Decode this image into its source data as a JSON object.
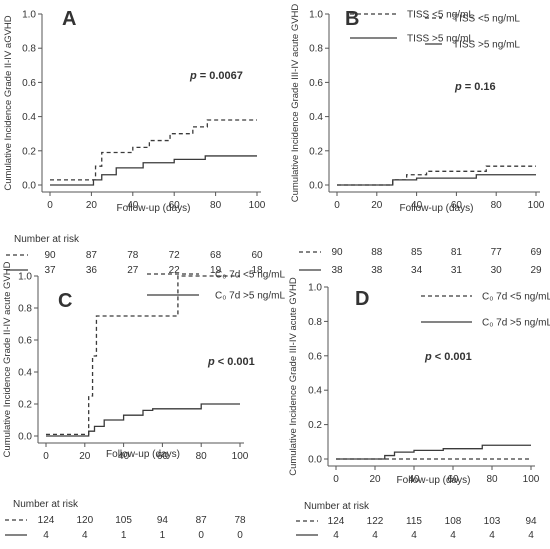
{
  "chart_data": [
    {
      "type": "line",
      "panel_label": "A",
      "ylabel": "Cumulative Incidence Grade II-IV aGVHD",
      "xlabel": "Follow-up (days)",
      "xlim": [
        0,
        100
      ],
      "ylim": [
        0,
        1.0
      ],
      "xticks": [
        "0",
        "20",
        "40",
        "60",
        "80",
        "100"
      ],
      "yticks": [
        "0.0",
        "0.2",
        "0.4",
        "0.6",
        "0.8",
        "1.0"
      ],
      "p_value": "= 0.0067",
      "legend_position": "top-right",
      "series": [
        {
          "name": "TISS <5 ng/mL",
          "style": "dashed",
          "x": [
            0,
            19,
            22,
            25,
            30,
            40,
            48,
            58,
            69,
            76,
            100
          ],
          "y": [
            0.03,
            0.03,
            0.11,
            0.19,
            0.19,
            0.22,
            0.26,
            0.3,
            0.34,
            0.38,
            0.38
          ]
        },
        {
          "name": "TISS >5 ng/mL",
          "style": "solid",
          "x": [
            0,
            19,
            21,
            25,
            32,
            45,
            60,
            75,
            100
          ],
          "y": [
            0.0,
            0.0,
            0.03,
            0.06,
            0.1,
            0.13,
            0.15,
            0.17,
            0.17
          ]
        }
      ],
      "risk_table": {
        "title": "Number at risk",
        "rows": [
          [
            "90",
            "87",
            "78",
            "72",
            "68",
            "60"
          ],
          [
            "37",
            "36",
            "27",
            "22",
            "19",
            "18"
          ]
        ]
      }
    },
    {
      "type": "line",
      "panel_label": "B",
      "ylabel": "Cumulative Incidence Grade III-IV acute GVHD",
      "xlabel": "Follow-up (days)",
      "xlim": [
        0,
        100
      ],
      "ylim": [
        0,
        1.0
      ],
      "xticks": [
        "0",
        "20",
        "40",
        "60",
        "80",
        "100"
      ],
      "yticks": [
        "0.0",
        "0.2",
        "0.4",
        "0.6",
        "0.8",
        "1.0"
      ],
      "p_value": "= 0.16",
      "legend_position": "top-right",
      "series": [
        {
          "name": "TISS <5 ng/mL",
          "style": "dashed",
          "x": [
            0,
            22,
            28,
            35,
            45,
            75,
            100
          ],
          "y": [
            0.0,
            0.0,
            0.03,
            0.06,
            0.08,
            0.11,
            0.11
          ]
        },
        {
          "name": "TISS >5 ng/mL",
          "style": "solid",
          "x": [
            0,
            20,
            28,
            40,
            70,
            100
          ],
          "y": [
            0.0,
            0.0,
            0.03,
            0.04,
            0.06,
            0.06
          ]
        }
      ],
      "risk_table": {
        "title": "",
        "rows": [
          [
            "90",
            "88",
            "85",
            "81",
            "77",
            "69"
          ],
          [
            "38",
            "38",
            "34",
            "31",
            "30",
            "29"
          ]
        ]
      }
    },
    {
      "type": "line",
      "panel_label": "C",
      "ylabel": "Cumulative Incidence Grade II-IV acute GVHD",
      "xlabel": "Follow-up (days)",
      "xlim": [
        0,
        100
      ],
      "ylim": [
        0,
        1.0
      ],
      "xticks": [
        "0",
        "20",
        "40",
        "60",
        "80",
        "100"
      ],
      "yticks": [
        "0.0",
        "0.2",
        "0.4",
        "0.6",
        "0.8",
        "1.0"
      ],
      "p_value": "< 0.001",
      "legend_position": "top-right",
      "series": [
        {
          "name": "C₀ 7d <5 ng/mL",
          "style": "dashed",
          "x": [
            0,
            20,
            22,
            24,
            26,
            68,
            100
          ],
          "y": [
            0.01,
            0.01,
            0.25,
            0.5,
            0.75,
            1.0,
            1.0
          ]
        },
        {
          "name": "C₀ 7d >5 ng/mL",
          "style": "solid",
          "x": [
            0,
            20,
            22,
            25,
            30,
            40,
            50,
            55,
            65,
            80,
            100
          ],
          "y": [
            0.0,
            0.0,
            0.03,
            0.06,
            0.1,
            0.13,
            0.16,
            0.17,
            0.17,
            0.2,
            0.2
          ]
        }
      ],
      "risk_table": {
        "title": "Number at risk",
        "rows": [
          [
            "124",
            "120",
            "105",
            "94",
            "87",
            "78"
          ],
          [
            "4",
            "4",
            "1",
            "1",
            "0",
            "0"
          ]
        ]
      }
    },
    {
      "type": "line",
      "panel_label": "D",
      "ylabel": "Cumulative Incidence Grade III-IV acute GVHD",
      "xlabel": "Follow-up (days)",
      "xlim": [
        0,
        100
      ],
      "ylim": [
        0,
        1.0
      ],
      "xticks": [
        "0",
        "20",
        "40",
        "60",
        "80",
        "100"
      ],
      "yticks": [
        "0.0",
        "0.2",
        "0.4",
        "0.6",
        "0.8",
        "1.0"
      ],
      "p_value": "< 0.001",
      "legend_position": "top-right",
      "series": [
        {
          "name": "C₀ 7d <5 ng/mL",
          "style": "dashed",
          "x": [
            0,
            100
          ],
          "y": [
            0.0,
            0.0
          ]
        },
        {
          "name": "C₀ 7d >5 ng/mL",
          "style": "solid",
          "x": [
            0,
            20,
            25,
            30,
            40,
            55,
            75,
            100
          ],
          "y": [
            0.0,
            0.0,
            0.02,
            0.04,
            0.05,
            0.06,
            0.08,
            0.08
          ]
        }
      ],
      "risk_table": {
        "title": "Number at risk",
        "rows": [
          [
            "124",
            "122",
            "115",
            "108",
            "103",
            "94"
          ],
          [
            "4",
            "4",
            "4",
            "4",
            "4",
            "4"
          ]
        ]
      }
    }
  ]
}
